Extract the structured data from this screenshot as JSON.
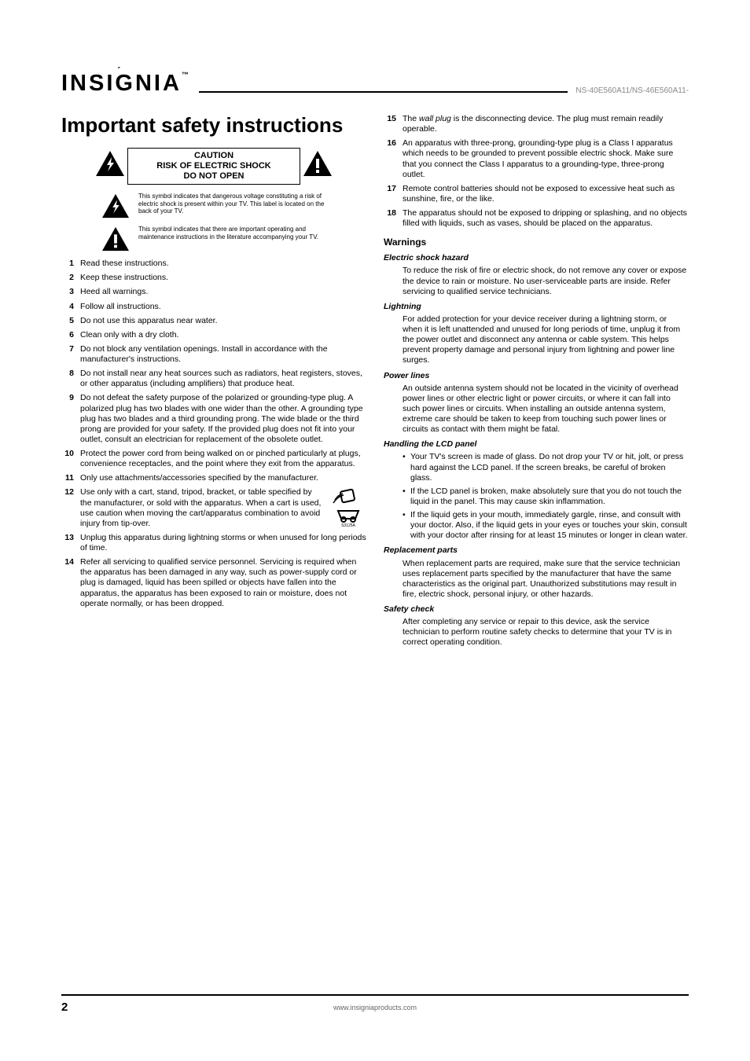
{
  "header": {
    "logo": "INSIGNIA",
    "model": "NS-40E560A11/NS-46E560A11-"
  },
  "title": "Important safety instructions",
  "caution": {
    "line1": "CAUTION",
    "line2": "RISK OF ELECTRIC SHOCK",
    "line3": "DO NOT OPEN"
  },
  "symbolText": {
    "bolt": "This symbol indicates that dangerous voltage constituting a risk of electric shock is present within your TV. This label is located on the back of your TV.",
    "exclaim": "This symbol indicates that there are important operating and maintenance instructions in the literature accompanying your TV."
  },
  "listLeft": [
    "Read these instructions.",
    "Keep these instructions.",
    "Heed all warnings.",
    "Follow all instructions.",
    "Do not use this apparatus near water.",
    "Clean only with a dry cloth.",
    "Do not block any ventilation openings. Install in accordance with the manufacturer's instructions.",
    "Do not install near any heat sources such as radiators, heat registers, stoves, or other apparatus (including amplifiers) that produce heat.",
    "Do not defeat the safety purpose of the polarized or grounding-type plug. A polarized plug has two blades with one wider than the other. A grounding type plug has two blades and a third grounding prong. The wide blade or the third prong are provided for your safety. If the provided plug does not fit into your outlet, consult an electrician for replacement of the obsolete outlet.",
    "Protect the power cord from being walked on or pinched particularly at plugs, convenience receptacles, and the point where they exit from the apparatus.",
    "Only use attachments/accessories specified by the manufacturer."
  ],
  "item12": {
    "pre": "Use only with a cart, stand, tripod, bracket, or table specified by the manufacturer, or sold with the apparatus. When a cart is used, use caution when moving the cart/apparatus combination to avoid injury from tip-over.",
    "cartLabel": "S3125A"
  },
  "listLeftCont": {
    "13": "Unplug this apparatus during lightning storms or when unused for long periods of time.",
    "14": "Refer all servicing to qualified service personnel. Servicing is required when the apparatus has been damaged in any way, such as power-supply cord or plug is damaged, liquid has been spilled or objects have fallen into the apparatus, the apparatus has been exposed to rain or moisture, does not operate normally, or has been dropped."
  },
  "listRight": {
    "15": {
      "preItalic": "The ",
      "italic": "wall plug",
      "post": " is the disconnecting device. The plug must remain readily operable."
    },
    "16": "An apparatus with three-prong, grounding-type plug is a Class I apparatus which needs to be grounded to prevent possible electric shock. Make sure that you connect the Class I apparatus to a grounding-type, three-prong outlet.",
    "17": "Remote control batteries should not be exposed to excessive heat such as sunshine, fire, or the like.",
    "18": "The apparatus should not be exposed to dripping or splashing, and no objects filled with liquids, such as vases, should be placed on the apparatus."
  },
  "warnings": {
    "heading": "Warnings",
    "electric": {
      "title": "Electric shock hazard",
      "body": "To reduce the risk of fire or electric shock, do not remove any cover or expose the device to rain or moisture. No user-serviceable parts are inside. Refer servicing to qualified service technicians."
    },
    "lightning": {
      "title": "Lightning",
      "body": "For added protection for your device receiver during a lightning storm, or when it is left unattended and unused for long periods of time, unplug it from the power outlet and disconnect any antenna or cable system. This helps prevent property damage and personal injury from lightning and power line surges."
    },
    "powerlines": {
      "title": "Power lines",
      "body": "An outside antenna system should not be located in the vicinity of overhead power lines or other electric light or power circuits, or where it can fall into such power lines or circuits. When installing an outside antenna system, extreme care should be taken to keep from touching such power lines or circuits as contact with them might be fatal."
    },
    "lcd": {
      "title": "Handling the LCD panel",
      "bullets": [
        "Your TV's screen is made of glass. Do not drop your TV or hit, jolt, or press hard against the LCD panel. If the screen breaks, be careful of broken glass.",
        "If the LCD panel is broken, make absolutely sure that you do not touch the liquid in the panel. This may cause skin inflammation.",
        "If the liquid gets in your mouth, immediately gargle, rinse, and consult with your doctor. Also, if the liquid gets in your eyes or touches your skin, consult with your doctor after rinsing for at least 15 minutes or longer in clean water."
      ]
    },
    "replacement": {
      "title": "Replacement parts",
      "body": "When replacement parts are required, make sure that the service technician uses replacement parts specified by the manufacturer that have the same characteristics as the original part. Unauthorized substitutions may result in fire, electric shock, personal injury, or other hazards."
    },
    "safety": {
      "title": "Safety check",
      "body": "After completing any service or repair to this device, ask the service technician to perform routine safety checks to determine that your TV is in correct operating condition."
    }
  },
  "footer": {
    "page": "2",
    "url": "www.insigniaproducts.com"
  },
  "colors": {
    "text": "#000000",
    "muted": "#888888",
    "footerText": "#666666",
    "rule": "#000000"
  }
}
